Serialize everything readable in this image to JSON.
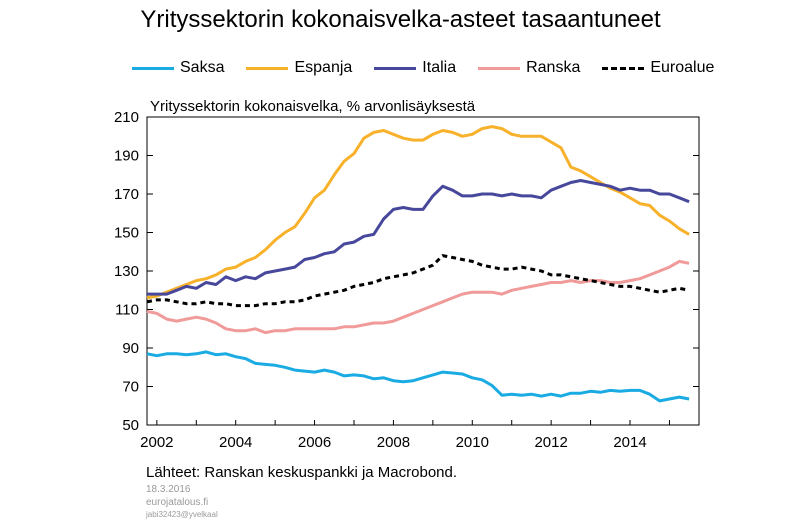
{
  "colors": {
    "Saksa": "#1aabe3",
    "Espanja": "#f7b12a",
    "Italia": "#47489c",
    "Ranska": "#f09a9a",
    "Euroalue": "#000000"
  },
  "footer": {
    "source": "Lähteet: Ranskan keskuspankki ja Macrobond.",
    "date": "18.3.2016",
    "site": "eurojatalous.fi",
    "author": "jabi32423@yvelkaal"
  },
  "chart_data": {
    "type": "line",
    "title": "Yrityssektorin kokonaisvelka-asteet tasaantuneet",
    "subtitle": "Yrityssektorin kokonaisvelka, % arvonlisäyksestä",
    "xlabel": "",
    "ylabel": "",
    "xlim": [
      2001.75,
      2015.75
    ],
    "ylim": [
      50,
      210
    ],
    "yticks": [
      50,
      70,
      90,
      110,
      130,
      150,
      170,
      190,
      210
    ],
    "xticks": [
      2002,
      2004,
      2006,
      2008,
      2010,
      2012,
      2014
    ],
    "legend": "top",
    "grid": false,
    "series": [
      {
        "name": "Saksa",
        "x": [
          2001.75,
          2002.0,
          2002.25,
          2002.5,
          2002.75,
          2003.0,
          2003.25,
          2003.5,
          2003.75,
          2004.0,
          2004.25,
          2004.5,
          2004.75,
          2005.0,
          2005.25,
          2005.5,
          2005.75,
          2006.0,
          2006.25,
          2006.5,
          2006.75,
          2007.0,
          2007.25,
          2007.5,
          2007.75,
          2008.0,
          2008.25,
          2008.5,
          2008.75,
          2009.0,
          2009.25,
          2009.5,
          2009.75,
          2010.0,
          2010.25,
          2010.5,
          2010.75,
          2011.0,
          2011.25,
          2011.5,
          2011.75,
          2012.0,
          2012.25,
          2012.5,
          2012.75,
          2013.0,
          2013.25,
          2013.5,
          2013.75,
          2014.0,
          2014.25,
          2014.5,
          2014.75,
          2015.0,
          2015.25,
          2015.5
        ],
        "values": [
          87,
          86,
          87,
          87,
          86.5,
          87,
          88,
          86.5,
          87,
          85.5,
          84.5,
          82,
          81.5,
          81,
          80,
          78.5,
          78,
          77.5,
          78.5,
          77.5,
          75.5,
          76,
          75.5,
          74,
          74.5,
          73,
          72.5,
          73,
          74.5,
          76,
          77.5,
          77,
          76.5,
          74.5,
          73.5,
          70.5,
          65.5,
          66,
          65.5,
          66,
          65,
          66,
          65,
          66.5,
          66.5,
          67.5,
          67,
          68,
          67.5,
          68,
          68,
          66,
          62.5,
          63.5,
          64.5,
          63.5
        ]
      },
      {
        "name": "Espanja",
        "x": [
          2001.75,
          2002.0,
          2002.25,
          2002.5,
          2002.75,
          2003.0,
          2003.25,
          2003.5,
          2003.75,
          2004.0,
          2004.25,
          2004.5,
          2004.75,
          2005.0,
          2005.25,
          2005.5,
          2005.75,
          2006.0,
          2006.25,
          2006.5,
          2006.75,
          2007.0,
          2007.25,
          2007.5,
          2007.75,
          2008.0,
          2008.25,
          2008.5,
          2008.75,
          2009.0,
          2009.25,
          2009.5,
          2009.75,
          2010.0,
          2010.25,
          2010.5,
          2010.75,
          2011.0,
          2011.25,
          2011.5,
          2011.75,
          2012.0,
          2012.25,
          2012.5,
          2012.75,
          2013.0,
          2013.25,
          2013.5,
          2013.75,
          2014.0,
          2014.25,
          2014.5,
          2014.75,
          2015.0,
          2015.25,
          2015.5
        ],
        "values": [
          116,
          117,
          119,
          121,
          123,
          125,
          126,
          128,
          131,
          132,
          135,
          137,
          141,
          146,
          150,
          153,
          160,
          168,
          172,
          180,
          187,
          191,
          199,
          202,
          203,
          201,
          199,
          198,
          198,
          201,
          203,
          202,
          200,
          201,
          204,
          205,
          204,
          201,
          200,
          200,
          200,
          197,
          194,
          184,
          182,
          179,
          176,
          173,
          171,
          168,
          165,
          164,
          159,
          156,
          152,
          149
        ]
      },
      {
        "name": "Italia",
        "x": [
          2001.75,
          2002.0,
          2002.25,
          2002.5,
          2002.75,
          2003.0,
          2003.25,
          2003.5,
          2003.75,
          2004.0,
          2004.25,
          2004.5,
          2004.75,
          2005.0,
          2005.25,
          2005.5,
          2005.75,
          2006.0,
          2006.25,
          2006.5,
          2006.75,
          2007.0,
          2007.25,
          2007.5,
          2007.75,
          2008.0,
          2008.25,
          2008.5,
          2008.75,
          2009.0,
          2009.25,
          2009.5,
          2009.75,
          2010.0,
          2010.25,
          2010.5,
          2010.75,
          2011.0,
          2011.25,
          2011.5,
          2011.75,
          2012.0,
          2012.25,
          2012.5,
          2012.75,
          2013.0,
          2013.25,
          2013.5,
          2013.75,
          2014.0,
          2014.25,
          2014.5,
          2014.75,
          2015.0,
          2015.25,
          2015.5
        ],
        "values": [
          118,
          118,
          118,
          120,
          122,
          121,
          124,
          123,
          127,
          125,
          127,
          126,
          129,
          130,
          131,
          132,
          136,
          137,
          139,
          140,
          144,
          145,
          148,
          149,
          157,
          162,
          163,
          162,
          162,
          169,
          174,
          172,
          169,
          169,
          170,
          170,
          169,
          170,
          169,
          169,
          168,
          172,
          174,
          176,
          177,
          176,
          175,
          174,
          172,
          173,
          172,
          172,
          170,
          170,
          168,
          166
        ]
      },
      {
        "name": "Ranska",
        "x": [
          2001.75,
          2002.0,
          2002.25,
          2002.5,
          2002.75,
          2003.0,
          2003.25,
          2003.5,
          2003.75,
          2004.0,
          2004.25,
          2004.5,
          2004.75,
          2005.0,
          2005.25,
          2005.5,
          2005.75,
          2006.0,
          2006.25,
          2006.5,
          2006.75,
          2007.0,
          2007.25,
          2007.5,
          2007.75,
          2008.0,
          2008.25,
          2008.5,
          2008.75,
          2009.0,
          2009.25,
          2009.5,
          2009.75,
          2010.0,
          2010.25,
          2010.5,
          2010.75,
          2011.0,
          2011.25,
          2011.5,
          2011.75,
          2012.0,
          2012.25,
          2012.5,
          2012.75,
          2013.0,
          2013.25,
          2013.5,
          2013.75,
          2014.0,
          2014.25,
          2014.5,
          2014.75,
          2015.0,
          2015.25,
          2015.5
        ],
        "values": [
          109,
          108,
          105,
          104,
          105,
          106,
          105,
          103,
          100,
          99,
          99,
          100,
          98,
          99,
          99,
          100,
          100,
          100,
          100,
          100,
          101,
          101,
          102,
          103,
          103,
          104,
          106,
          108,
          110,
          112,
          114,
          116,
          118,
          119,
          119,
          119,
          118,
          120,
          121,
          122,
          123,
          124,
          124,
          125,
          124,
          125,
          125,
          124,
          124,
          125,
          126,
          128,
          130,
          132,
          135,
          134
        ]
      },
      {
        "name": "Euroalue",
        "x": [
          2001.75,
          2002.0,
          2002.25,
          2002.5,
          2002.75,
          2003.0,
          2003.25,
          2003.5,
          2003.75,
          2004.0,
          2004.25,
          2004.5,
          2004.75,
          2005.0,
          2005.25,
          2005.5,
          2005.75,
          2006.0,
          2006.25,
          2006.5,
          2006.75,
          2007.0,
          2007.25,
          2007.5,
          2007.75,
          2008.0,
          2008.25,
          2008.5,
          2008.75,
          2009.0,
          2009.25,
          2009.5,
          2009.75,
          2010.0,
          2010.25,
          2010.5,
          2010.75,
          2011.0,
          2011.25,
          2011.5,
          2011.75,
          2012.0,
          2012.25,
          2012.5,
          2012.75,
          2013.0,
          2013.25,
          2013.5,
          2013.75,
          2014.0,
          2014.25,
          2014.5,
          2014.75,
          2015.0,
          2015.25,
          2015.5
        ],
        "values": [
          114,
          115,
          115,
          114,
          113,
          113,
          114,
          113,
          113,
          112,
          112,
          112,
          113,
          113,
          114,
          114,
          115,
          117,
          118,
          119,
          120,
          122,
          123,
          124,
          126,
          127,
          128,
          129,
          131,
          133,
          138,
          137,
          136,
          135,
          133,
          132,
          131,
          131,
          132,
          131,
          130,
          128,
          128,
          127,
          126,
          125,
          124,
          123,
          122,
          122,
          121,
          120,
          119,
          120,
          121,
          120
        ]
      }
    ]
  }
}
